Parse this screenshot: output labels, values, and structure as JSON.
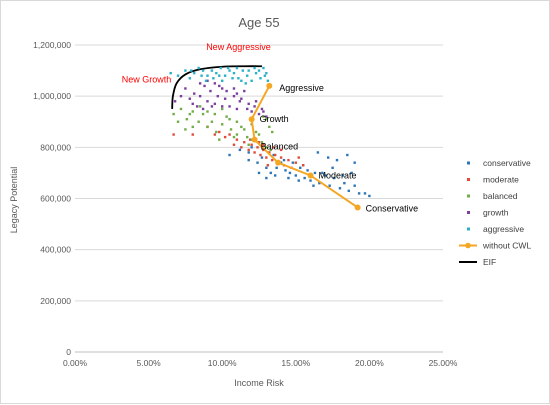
{
  "chart_data": {
    "type": "scatter",
    "title": "Age 55",
    "xlabel": "Income Risk",
    "ylabel": "Legacy Potential",
    "xlim": [
      0,
      0.25
    ],
    "ylim": [
      0,
      1200000
    ],
    "x_ticks": [
      0,
      0.05,
      0.1,
      0.15,
      0.2,
      0.25
    ],
    "x_tick_labels": [
      "0.00%",
      "5.00%",
      "10.00%",
      "15.00%",
      "20.00%",
      "25.00%"
    ],
    "y_ticks": [
      0,
      200000,
      400000,
      600000,
      800000,
      1000000,
      1200000
    ],
    "y_tick_labels": [
      "0",
      "200,000",
      "400,000",
      "600,000",
      "800,000",
      "1,000,000",
      "1,200,000"
    ],
    "grid": "horizontal",
    "legend_position": "right",
    "series": [
      {
        "name": "conservative",
        "kind": "scatter",
        "color": "#2e75b6",
        "points": [
          [
            0.105,
            770000
          ],
          [
            0.112,
            790000
          ],
          [
            0.118,
            750000
          ],
          [
            0.124,
            740000
          ],
          [
            0.127,
            760000
          ],
          [
            0.13,
            720000
          ],
          [
            0.133,
            700000
          ],
          [
            0.136,
            690000
          ],
          [
            0.14,
            740000
          ],
          [
            0.143,
            710000
          ],
          [
            0.146,
            700000
          ],
          [
            0.15,
            690000
          ],
          [
            0.153,
            720000
          ],
          [
            0.156,
            680000
          ],
          [
            0.16,
            670000
          ],
          [
            0.163,
            700000
          ],
          [
            0.166,
            660000
          ],
          [
            0.17,
            690000
          ],
          [
            0.173,
            650000
          ],
          [
            0.176,
            680000
          ],
          [
            0.18,
            640000
          ],
          [
            0.183,
            660000
          ],
          [
            0.186,
            630000
          ],
          [
            0.19,
            650000
          ],
          [
            0.193,
            620000
          ],
          [
            0.197,
            620000
          ],
          [
            0.2,
            610000
          ],
          [
            0.165,
            780000
          ],
          [
            0.172,
            760000
          ],
          [
            0.178,
            750000
          ],
          [
            0.185,
            770000
          ],
          [
            0.19,
            740000
          ],
          [
            0.135,
            770000
          ],
          [
            0.142,
            750000
          ],
          [
            0.148,
            740000
          ],
          [
            0.155,
            730000
          ],
          [
            0.12,
            800000
          ],
          [
            0.128,
            790000
          ],
          [
            0.137,
            720000
          ],
          [
            0.158,
            710000
          ],
          [
            0.168,
            700000
          ],
          [
            0.175,
            720000
          ],
          [
            0.182,
            690000
          ],
          [
            0.188,
            700000
          ],
          [
            0.145,
            680000
          ],
          [
            0.152,
            670000
          ],
          [
            0.162,
            650000
          ],
          [
            0.13,
            680000
          ],
          [
            0.125,
            700000
          ],
          [
            0.118,
            780000
          ]
        ]
      },
      {
        "name": "moderate",
        "kind": "scatter",
        "color": "#e04b3c",
        "points": [
          [
            0.067,
            850000
          ],
          [
            0.08,
            850000
          ],
          [
            0.09,
            880000
          ],
          [
            0.098,
            860000
          ],
          [
            0.105,
            850000
          ],
          [
            0.11,
            830000
          ],
          [
            0.115,
            820000
          ],
          [
            0.12,
            810000
          ],
          [
            0.124,
            800000
          ],
          [
            0.128,
            790000
          ],
          [
            0.132,
            780000
          ],
          [
            0.136,
            770000
          ],
          [
            0.14,
            760000
          ],
          [
            0.145,
            750000
          ],
          [
            0.15,
            740000
          ],
          [
            0.155,
            730000
          ],
          [
            0.118,
            790000
          ],
          [
            0.122,
            780000
          ],
          [
            0.126,
            770000
          ],
          [
            0.13,
            760000
          ],
          [
            0.134,
            750000
          ],
          [
            0.138,
            740000
          ],
          [
            0.142,
            730000
          ],
          [
            0.147,
            720000
          ],
          [
            0.113,
            800000
          ],
          [
            0.108,
            810000
          ],
          [
            0.102,
            840000
          ],
          [
            0.095,
            850000
          ],
          [
            0.125,
            820000
          ],
          [
            0.135,
            800000
          ],
          [
            0.14,
            790000
          ],
          [
            0.128,
            810000
          ],
          [
            0.119,
            830000
          ],
          [
            0.131,
            730000
          ],
          [
            0.152,
            760000
          ]
        ]
      },
      {
        "name": "balanced",
        "kind": "scatter",
        "color": "#70ad47",
        "points": [
          [
            0.067,
            930000
          ],
          [
            0.072,
            950000
          ],
          [
            0.076,
            910000
          ],
          [
            0.08,
            940000
          ],
          [
            0.084,
            900000
          ],
          [
            0.087,
            930000
          ],
          [
            0.09,
            880000
          ],
          [
            0.093,
            900000
          ],
          [
            0.096,
            860000
          ],
          [
            0.1,
            890000
          ],
          [
            0.103,
            920000
          ],
          [
            0.106,
            870000
          ],
          [
            0.11,
            850000
          ],
          [
            0.113,
            880000
          ],
          [
            0.117,
            840000
          ],
          [
            0.12,
            830000
          ],
          [
            0.123,
            860000
          ],
          [
            0.127,
            820000
          ],
          [
            0.13,
            800000
          ],
          [
            0.133,
            790000
          ],
          [
            0.08,
            880000
          ],
          [
            0.085,
            960000
          ],
          [
            0.09,
            940000
          ],
          [
            0.095,
            930000
          ],
          [
            0.1,
            950000
          ],
          [
            0.105,
            910000
          ],
          [
            0.11,
            900000
          ],
          [
            0.115,
            870000
          ],
          [
            0.12,
            890000
          ],
          [
            0.125,
            850000
          ],
          [
            0.128,
            920000
          ],
          [
            0.13,
            910000
          ],
          [
            0.132,
            880000
          ],
          [
            0.134,
            860000
          ],
          [
            0.07,
            900000
          ],
          [
            0.075,
            870000
          ],
          [
            0.078,
            930000
          ],
          [
            0.098,
            830000
          ],
          [
            0.108,
            840000
          ],
          [
            0.118,
            810000
          ]
        ]
      },
      {
        "name": "growth",
        "kind": "scatter",
        "color": "#7b3fa0",
        "points": [
          [
            0.068,
            980000
          ],
          [
            0.072,
            1000000
          ],
          [
            0.075,
            1030000
          ],
          [
            0.078,
            990000
          ],
          [
            0.081,
            1010000
          ],
          [
            0.083,
            960000
          ],
          [
            0.085,
            1000000
          ],
          [
            0.088,
            1040000
          ],
          [
            0.09,
            980000
          ],
          [
            0.092,
            1020000
          ],
          [
            0.095,
            970000
          ],
          [
            0.097,
            1000000
          ],
          [
            0.1,
            1030000
          ],
          [
            0.102,
            990000
          ],
          [
            0.105,
            960000
          ],
          [
            0.108,
            1000000
          ],
          [
            0.11,
            950000
          ],
          [
            0.112,
            980000
          ],
          [
            0.115,
            1020000
          ],
          [
            0.118,
            970000
          ],
          [
            0.12,
            940000
          ],
          [
            0.122,
            960000
          ],
          [
            0.125,
            930000
          ],
          [
            0.127,
            950000
          ],
          [
            0.13,
            920000
          ],
          [
            0.085,
            1050000
          ],
          [
            0.09,
            1060000
          ],
          [
            0.095,
            1050000
          ],
          [
            0.098,
            1040000
          ],
          [
            0.103,
            1020000
          ],
          [
            0.108,
            1030000
          ],
          [
            0.113,
            990000
          ],
          [
            0.117,
            950000
          ],
          [
            0.123,
            980000
          ],
          [
            0.128,
            940000
          ],
          [
            0.08,
            970000
          ],
          [
            0.087,
            950000
          ],
          [
            0.093,
            960000
          ],
          [
            0.11,
            1010000
          ],
          [
            0.1,
            960000
          ]
        ]
      },
      {
        "name": "aggressive",
        "kind": "scatter",
        "color": "#2ab1c6",
        "points": [
          [
            0.065,
            1090000
          ],
          [
            0.07,
            1080000
          ],
          [
            0.075,
            1100000
          ],
          [
            0.078,
            1070000
          ],
          [
            0.081,
            1090000
          ],
          [
            0.084,
            1110000
          ],
          [
            0.087,
            1100000
          ],
          [
            0.09,
            1080000
          ],
          [
            0.093,
            1100000
          ],
          [
            0.096,
            1090000
          ],
          [
            0.099,
            1110000
          ],
          [
            0.102,
            1080000
          ],
          [
            0.105,
            1100000
          ],
          [
            0.108,
            1090000
          ],
          [
            0.111,
            1070000
          ],
          [
            0.114,
            1100000
          ],
          [
            0.117,
            1080000
          ],
          [
            0.12,
            1060000
          ],
          [
            0.123,
            1090000
          ],
          [
            0.126,
            1070000
          ],
          [
            0.129,
            1080000
          ],
          [
            0.131,
            1060000
          ],
          [
            0.089,
            1060000
          ],
          [
            0.094,
            1070000
          ],
          [
            0.1,
            1060000
          ],
          [
            0.107,
            1070000
          ],
          [
            0.113,
            1060000
          ],
          [
            0.118,
            1100000
          ],
          [
            0.122,
            1110000
          ],
          [
            0.125,
            1100000
          ],
          [
            0.128,
            1110000
          ],
          [
            0.13,
            1090000
          ],
          [
            0.098,
            1080000
          ],
          [
            0.104,
            1110000
          ],
          [
            0.11,
            1110000
          ],
          [
            0.116,
            1050000
          ],
          [
            0.079,
            1100000
          ],
          [
            0.086,
            1080000
          ]
        ]
      },
      {
        "name": "without CWL",
        "kind": "line",
        "color": "#f5a623",
        "points": [
          [
            0.132,
            1040000
          ],
          [
            0.12,
            910000
          ],
          [
            0.122,
            830000
          ],
          [
            0.138,
            740000
          ],
          [
            0.16,
            690000
          ],
          [
            0.192,
            565000
          ]
        ]
      },
      {
        "name": "EIF",
        "kind": "curve",
        "color": "#000000",
        "points": [
          [
            0.066,
            950000
          ],
          [
            0.0665,
            1000000
          ],
          [
            0.069,
            1050000
          ],
          [
            0.075,
            1085000
          ],
          [
            0.085,
            1105000
          ],
          [
            0.1,
            1115000
          ],
          [
            0.115,
            1117000
          ],
          [
            0.127,
            1117000
          ]
        ]
      }
    ],
    "annotations": [
      {
        "text": "New Aggressive",
        "x": 0.1,
        "y": 1150000,
        "color": "#ff0000"
      },
      {
        "text": "New Growth",
        "x": 0.063,
        "y": 1030000,
        "color": "#ff0000"
      },
      {
        "text": "Aggressive",
        "x": 0.132,
        "y": 1040000,
        "color": "#000000"
      },
      {
        "text": "Growth",
        "x": 0.12,
        "y": 910000,
        "color": "#000000"
      },
      {
        "text": "Balanced",
        "x": 0.122,
        "y": 830000,
        "color": "#000000"
      },
      {
        "text": "Moderate",
        "x": 0.16,
        "y": 690000,
        "color": "#000000"
      },
      {
        "text": "Conservative",
        "x": 0.192,
        "y": 565000,
        "color": "#000000"
      }
    ]
  }
}
